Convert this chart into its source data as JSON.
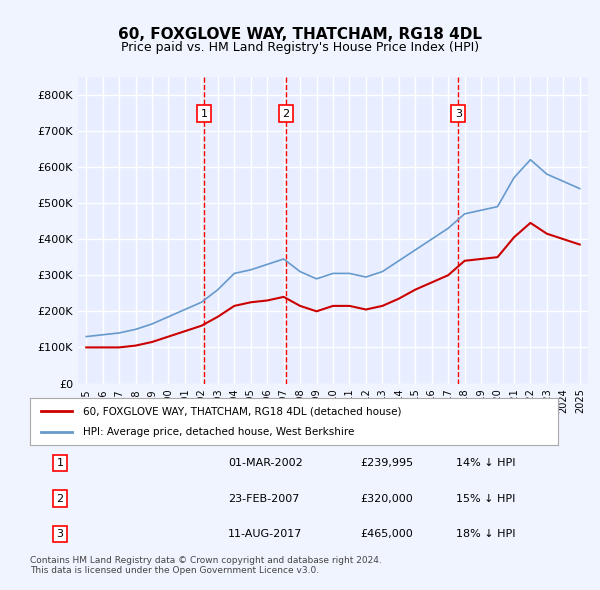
{
  "title": "60, FOXGLOVE WAY, THATCHAM, RG18 4DL",
  "subtitle": "Price paid vs. HM Land Registry's House Price Index (HPI)",
  "background_color": "#f0f4ff",
  "plot_bg_color": "#e8eeff",
  "grid_color": "#ffffff",
  "red_line_color": "#cc0000",
  "blue_line_color": "#6699cc",
  "ylim": [
    0,
    850000
  ],
  "yticks": [
    0,
    100000,
    200000,
    300000,
    400000,
    500000,
    600000,
    700000,
    800000
  ],
  "ytick_labels": [
    "£0",
    "£100K",
    "£200K",
    "£300K",
    "£400K",
    "£500K",
    "£600K",
    "£700K",
    "£800K"
  ],
  "sale_dates": [
    "2002-03-01",
    "2007-02-23",
    "2017-08-11"
  ],
  "sale_prices": [
    239995,
    320000,
    465000
  ],
  "sale_labels": [
    "1",
    "2",
    "3"
  ],
  "sale_label_dates": [
    2002.17,
    2007.14,
    2017.61
  ],
  "legend_red": "60, FOXGLOVE WAY, THATCHAM, RG18 4DL (detached house)",
  "legend_blue": "HPI: Average price, detached house, West Berkshire",
  "table_rows": [
    {
      "num": "1",
      "date": "01-MAR-2002",
      "price": "£239,995",
      "hpi": "14% ↓ HPI"
    },
    {
      "num": "2",
      "date": "23-FEB-2007",
      "price": "£320,000",
      "hpi": "15% ↓ HPI"
    },
    {
      "num": "3",
      "date": "11-AUG-2017",
      "price": "£465,000",
      "hpi": "18% ↓ HPI"
    }
  ],
  "footer": "Contains HM Land Registry data © Crown copyright and database right 2024.\nThis data is licensed under the Open Government Licence v3.0.",
  "hpi_years": [
    1995,
    1996,
    1997,
    1998,
    1999,
    2000,
    2001,
    2002,
    2003,
    2004,
    2005,
    2006,
    2007,
    2008,
    2009,
    2010,
    2011,
    2012,
    2013,
    2014,
    2015,
    2016,
    2017,
    2018,
    2019,
    2020,
    2021,
    2022,
    2023,
    2024,
    2025
  ],
  "hpi_values": [
    130000,
    135000,
    140000,
    150000,
    165000,
    185000,
    205000,
    225000,
    260000,
    305000,
    315000,
    330000,
    345000,
    310000,
    290000,
    305000,
    305000,
    295000,
    310000,
    340000,
    370000,
    400000,
    430000,
    470000,
    480000,
    490000,
    570000,
    620000,
    580000,
    560000,
    540000
  ],
  "red_years": [
    1995,
    1996,
    1997,
    1998,
    1999,
    2000,
    2001,
    2002,
    2003,
    2004,
    2005,
    2006,
    2007,
    2008,
    2009,
    2010,
    2011,
    2012,
    2013,
    2014,
    2015,
    2016,
    2017,
    2018,
    2019,
    2020,
    2021,
    2022,
    2023,
    2024,
    2025
  ],
  "red_values": [
    100000,
    100000,
    100000,
    105000,
    115000,
    130000,
    145000,
    160000,
    185000,
    215000,
    225000,
    230000,
    240000,
    215000,
    200000,
    215000,
    215000,
    205000,
    215000,
    235000,
    260000,
    280000,
    300000,
    340000,
    345000,
    350000,
    405000,
    445000,
    415000,
    400000,
    385000
  ]
}
